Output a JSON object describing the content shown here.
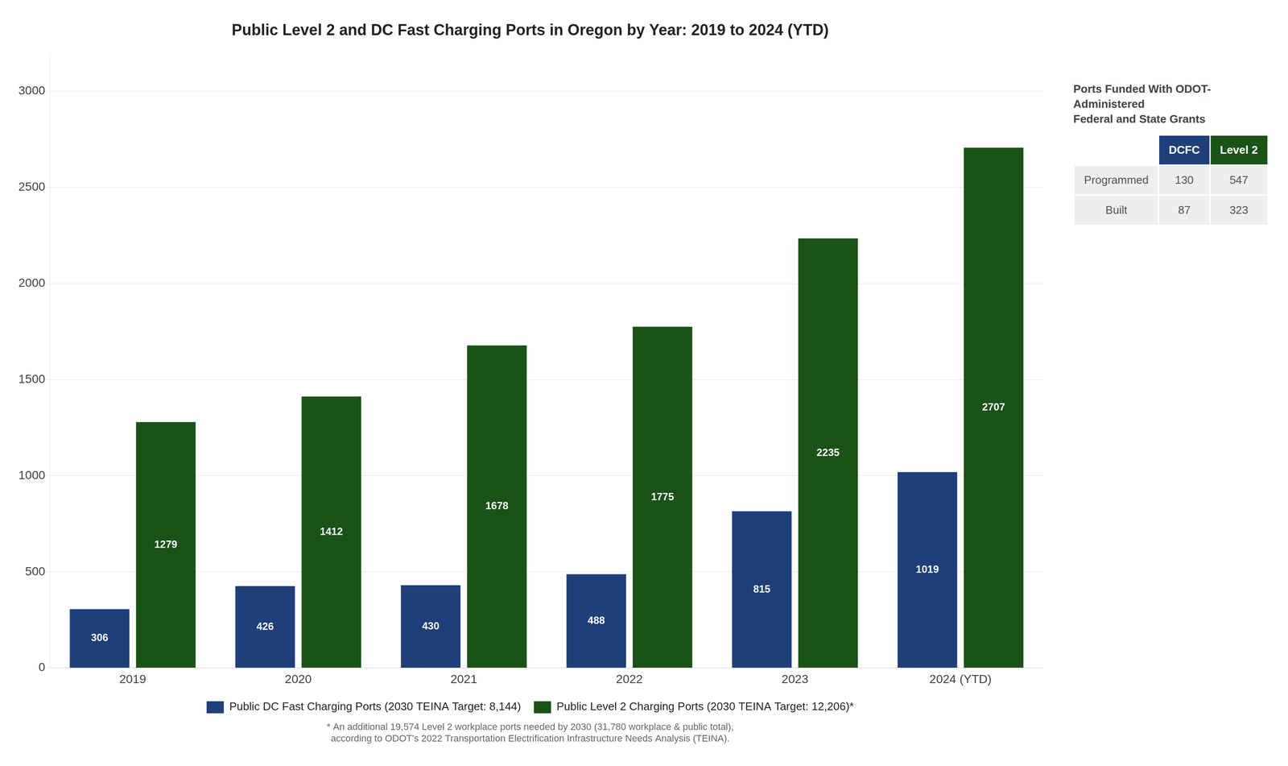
{
  "chart_data": {
    "type": "bar",
    "title": "Public Level 2 and DC Fast Charging Ports in Oregon by Year: 2019 to 2024 (YTD)",
    "categories": [
      "2019",
      "2020",
      "2021",
      "2022",
      "2023",
      "2024 (YTD)"
    ],
    "series": [
      {
        "name": "Public DC Fast Charging Ports (2030 TEINA Target: 8,144)",
        "color": "#1F3F7A",
        "values": [
          306,
          426,
          430,
          488,
          815,
          1019
        ]
      },
      {
        "name": "Public Level 2 Charging Ports (2030 TEINA Target: 12,206)*",
        "color": "#1A5218",
        "values": [
          1279,
          1412,
          1678,
          1775,
          2235,
          2707
        ]
      }
    ],
    "ylim": [
      0,
      3200
    ],
    "yticks": [
      0,
      500,
      1000,
      1500,
      2000,
      2500,
      3000
    ],
    "grid": true,
    "legend": "bottom",
    "data_labels": true,
    "footnote": [
      "* An additional 19,574 Level 2 workplace ports needed by 2030 (31,780 workplace & public total),",
      "according to ODOT's 2022 Transportation Electrification Infrastructure Needs Analysis (TEINA)."
    ],
    "inset": {
      "title": [
        "Ports Funded With ODOT-Administered",
        "Federal and State Grants"
      ],
      "columns": [
        "DCFC",
        "Level 2"
      ],
      "rows": [
        [
          "Programmed",
          130,
          547
        ],
        [
          "Built",
          87,
          323
        ]
      ]
    }
  }
}
